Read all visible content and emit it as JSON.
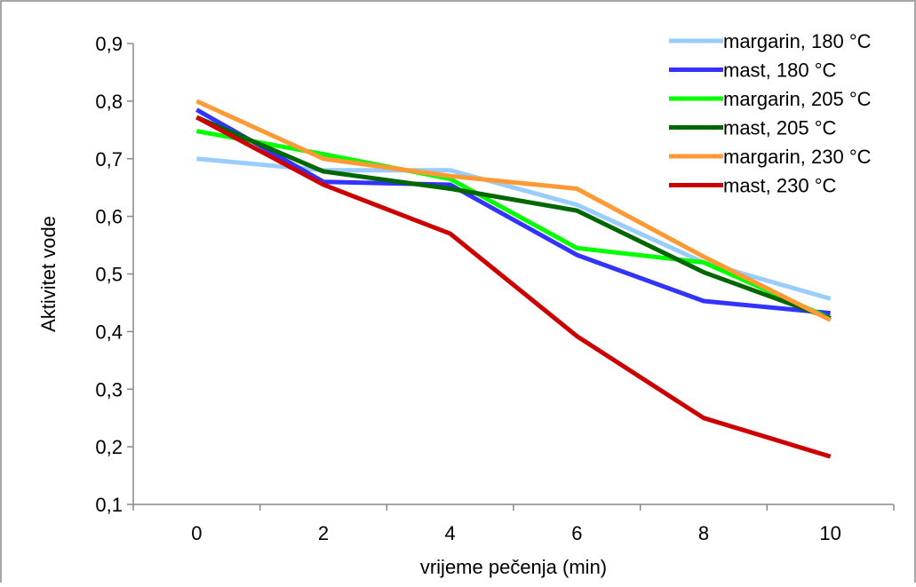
{
  "chart_data": {
    "type": "line",
    "title": "",
    "xlabel": "vrijeme pečenja (min)",
    "ylabel": "Aktivitet  vode",
    "categories": [
      "0",
      "2",
      "4",
      "6",
      "8",
      "10"
    ],
    "y_ticks": [
      "0,1",
      "0,2",
      "0,3",
      "0,4",
      "0,5",
      "0,6",
      "0,7",
      "0,8",
      "0,9"
    ],
    "ylim": [
      0.1,
      0.9
    ],
    "grid": false,
    "legend_position": "top-right",
    "series": [
      {
        "name": "margarin, 180 °C",
        "color": "#99CCFF",
        "values": [
          0.7,
          0.68,
          0.68,
          0.62,
          0.52,
          0.457
        ]
      },
      {
        "name": "mast, 180 °C",
        "color": "#3333FF",
        "values": [
          0.785,
          0.66,
          0.655,
          0.533,
          0.453,
          0.432
        ]
      },
      {
        "name": "margarin, 205 °C",
        "color": "#00FF00",
        "values": [
          0.748,
          0.708,
          0.665,
          0.545,
          0.52,
          0.423
        ]
      },
      {
        "name": "mast, 205 °C",
        "color": "#006600",
        "values": [
          0.772,
          0.678,
          0.648,
          0.61,
          0.503,
          0.423
        ]
      },
      {
        "name": "margarin, 230 °C",
        "color": "#FF9933",
        "values": [
          0.8,
          0.7,
          0.67,
          0.648,
          0.53,
          0.42
        ]
      },
      {
        "name": "mast, 230 °C",
        "color": "#CC0000",
        "values": [
          0.772,
          0.655,
          0.57,
          0.392,
          0.25,
          0.183
        ]
      }
    ]
  }
}
